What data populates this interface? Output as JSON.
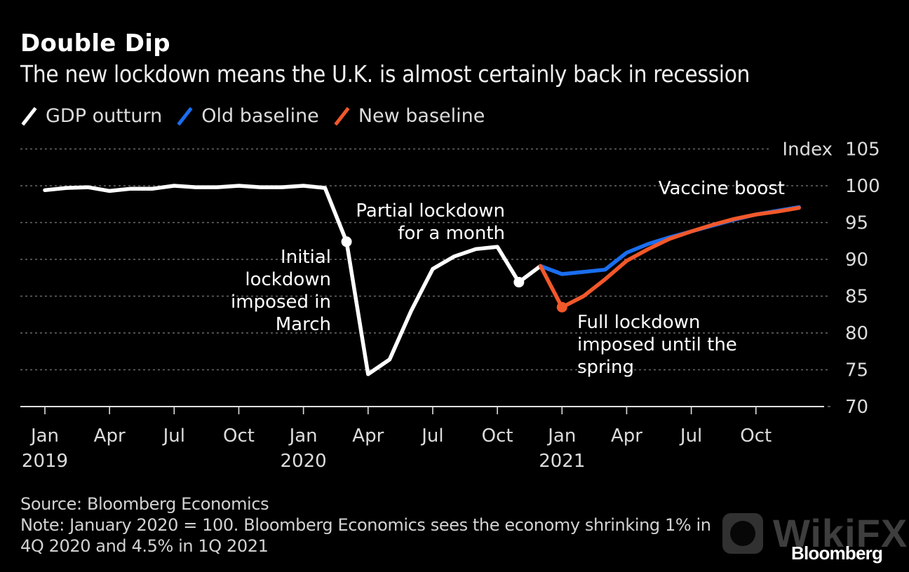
{
  "header": {
    "title": "Double Dip",
    "subtitle": "The new lockdown means the U.K. is almost certainly back in recession"
  },
  "legend": [
    {
      "label": "GDP outturn",
      "color": "#ffffff"
    },
    {
      "label": "Old baseline",
      "color": "#1a6ef0"
    },
    {
      "label": "New baseline",
      "color": "#f2582a"
    }
  ],
  "footer": {
    "source": "Source: Bloomberg Economics",
    "note_line1": "Note: January 2020 = 100. Bloomberg Economics sees the economy shrinking 1% in",
    "note_line2": "4Q 2020 and 4.5% in 1Q 2021"
  },
  "watermark": {
    "text": "WikiFX"
  },
  "brand": {
    "logo_text": "Bloomberg"
  },
  "chart_data": {
    "type": "line",
    "title": "Double Dip",
    "subtitle": "The new lockdown means the U.K. is almost certainly back in recession",
    "xlabel": "",
    "ylabel": "Index",
    "ylim": [
      70,
      105
    ],
    "yticks": [
      70,
      75,
      80,
      85,
      90,
      95,
      100,
      105
    ],
    "grid": true,
    "legend_position": "top-left",
    "x_months": [
      "2019-01",
      "2019-02",
      "2019-03",
      "2019-04",
      "2019-05",
      "2019-06",
      "2019-07",
      "2019-08",
      "2019-09",
      "2019-10",
      "2019-11",
      "2019-12",
      "2020-01",
      "2020-02",
      "2020-03",
      "2020-04",
      "2020-05",
      "2020-06",
      "2020-07",
      "2020-08",
      "2020-09",
      "2020-10",
      "2020-11",
      "2020-12",
      "2021-01",
      "2021-02",
      "2021-03",
      "2021-04",
      "2021-05",
      "2021-06",
      "2021-07",
      "2021-08",
      "2021-09",
      "2021-10",
      "2021-11",
      "2021-12"
    ],
    "xticks": [
      {
        "month_index": 0,
        "label": "Jan",
        "year": "2019"
      },
      {
        "month_index": 3,
        "label": "Apr",
        "year": ""
      },
      {
        "month_index": 6,
        "label": "Jul",
        "year": ""
      },
      {
        "month_index": 9,
        "label": "Oct",
        "year": ""
      },
      {
        "month_index": 12,
        "label": "Jan",
        "year": "2020"
      },
      {
        "month_index": 15,
        "label": "Apr",
        "year": ""
      },
      {
        "month_index": 18,
        "label": "Jul",
        "year": ""
      },
      {
        "month_index": 21,
        "label": "Oct",
        "year": ""
      },
      {
        "month_index": 24,
        "label": "Jan",
        "year": "2021"
      },
      {
        "month_index": 27,
        "label": "Apr",
        "year": ""
      },
      {
        "month_index": 30,
        "label": "Jul",
        "year": ""
      },
      {
        "month_index": 33,
        "label": "Oct",
        "year": ""
      }
    ],
    "series": [
      {
        "name": "GDP outturn",
        "color": "#ffffff",
        "start_index": 0,
        "values": [
          99.4,
          99.7,
          99.8,
          99.3,
          99.6,
          99.6,
          100.0,
          99.8,
          99.8,
          100.0,
          99.8,
          99.8,
          100.0,
          99.7,
          92.4,
          74.4,
          76.4,
          83.0,
          88.7,
          90.4,
          91.4,
          91.7,
          86.9,
          89.1
        ],
        "markers": [
          14,
          22
        ]
      },
      {
        "name": "Old baseline",
        "color": "#1a6ef0",
        "start_index": 23,
        "values": [
          89.1,
          88.0,
          88.3,
          88.6,
          90.9,
          92.1,
          93.0,
          93.8,
          94.6,
          95.4,
          96.1,
          96.6,
          97.1
        ],
        "markers": []
      },
      {
        "name": "New baseline",
        "color": "#f2582a",
        "start_index": 23,
        "values": [
          89.1,
          83.5,
          85.0,
          87.3,
          89.8,
          91.4,
          92.8,
          93.8,
          94.7,
          95.5,
          96.1,
          96.5,
          97.0
        ],
        "markers": [
          24
        ]
      }
    ],
    "annotations": [
      {
        "lines": [
          "Initial",
          "lockdown",
          "imposed in",
          "March"
        ],
        "month_index": 14,
        "align": "right"
      },
      {
        "lines": [
          "Partial lockdown",
          "for a month"
        ],
        "month_index": 22,
        "align": "right"
      },
      {
        "lines": [
          "Full lockdown",
          "imposed until the",
          "spring"
        ],
        "month_index": 24,
        "align": "left"
      },
      {
        "lines": [
          "Vaccine boost"
        ],
        "month_index": 35,
        "align": "right"
      }
    ]
  }
}
